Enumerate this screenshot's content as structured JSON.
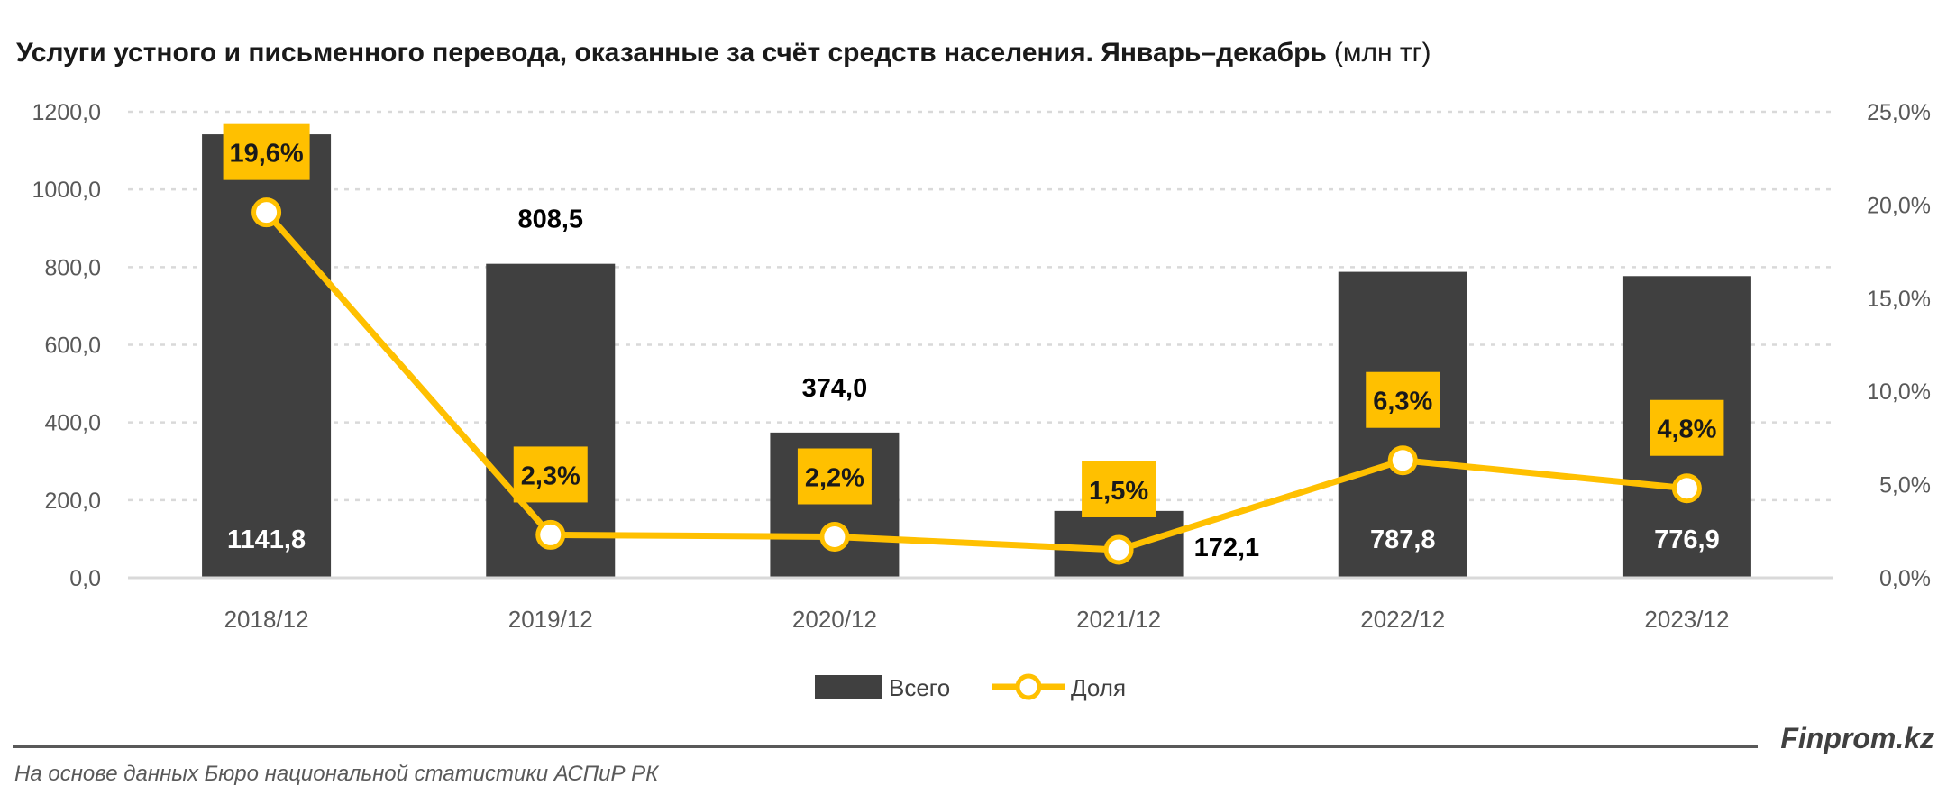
{
  "title": "Услуги устного и письменного перевода, оказанные за счёт средств населения. Январь–декабрь",
  "title_unit": "(млн тг)",
  "brand": "Finprom.kz",
  "source": "На основе данных Бюро национальной статистики АСПиР РК",
  "colors": {
    "bar": "#404040",
    "line": "#FFC000",
    "label_box": "#FFC000",
    "grid": "#D9D9D9"
  },
  "chart_data": {
    "type": "bar+line",
    "categories": [
      "2018/12",
      "2019/12",
      "2020/12",
      "2021/12",
      "2022/12",
      "2023/12"
    ],
    "series": [
      {
        "name": "Всего",
        "type": "bar",
        "axis": "left",
        "values": [
          1141.8,
          808.5,
          374.0,
          172.1,
          787.8,
          776.9
        ],
        "labels": [
          "1141,8",
          "808,5",
          "374,0",
          "172,1",
          "787,8",
          "776,9"
        ]
      },
      {
        "name": "Доля",
        "type": "line",
        "axis": "right",
        "values": [
          19.6,
          2.3,
          2.2,
          1.5,
          6.3,
          4.8
        ],
        "labels": [
          "19,6%",
          "2,3%",
          "2,2%",
          "1,5%",
          "6,3%",
          "4,8%"
        ]
      }
    ],
    "y_left": {
      "range": [
        0,
        1200
      ],
      "ticks": [
        "0,0",
        "200,0",
        "400,0",
        "600,0",
        "800,0",
        "1000,0",
        "1200,0"
      ]
    },
    "y_right": {
      "range": [
        0,
        25
      ],
      "ticks": [
        "0,0%",
        "5,0%",
        "10,0%",
        "15,0%",
        "20,0%",
        "25,0%"
      ]
    },
    "grid": true,
    "legend": "bottom"
  }
}
